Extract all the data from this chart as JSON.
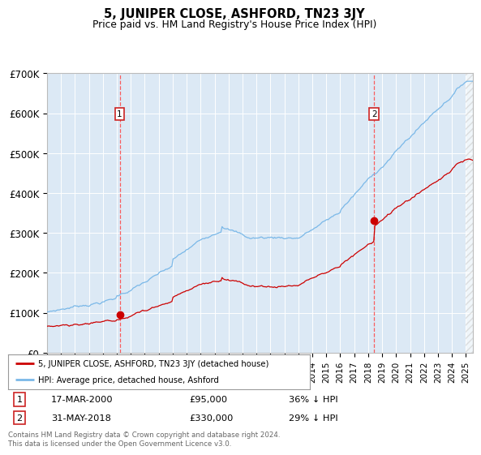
{
  "title": "5, JUNIPER CLOSE, ASHFORD, TN23 3JY",
  "subtitle": "Price paid vs. HM Land Registry's House Price Index (HPI)",
  "ylim": [
    0,
    700000
  ],
  "yticks": [
    0,
    100000,
    200000,
    300000,
    400000,
    500000,
    600000,
    700000
  ],
  "ytick_labels": [
    "£0",
    "£100K",
    "£200K",
    "£300K",
    "£400K",
    "£500K",
    "£600K",
    "£700K"
  ],
  "xlim_start": 1995.0,
  "xlim_end": 2025.5,
  "background_color": "#dce9f5",
  "hpi_color": "#7ab8e8",
  "price_color": "#cc0000",
  "marker1_x": 2000.2,
  "marker1_y": 95000,
  "marker2_x": 2018.42,
  "marker2_y": 330000,
  "legend_line1": "5, JUNIPER CLOSE, ASHFORD, TN23 3JY (detached house)",
  "legend_line2": "HPI: Average price, detached house, Ashford",
  "marker1_date": "17-MAR-2000",
  "marker1_price": "£95,000",
  "marker1_hpi": "36% ↓ HPI",
  "marker2_date": "31-MAY-2018",
  "marker2_price": "£330,000",
  "marker2_hpi": "29% ↓ HPI",
  "footer": "Contains HM Land Registry data © Crown copyright and database right 2024.\nThis data is licensed under the Open Government Licence v3.0."
}
